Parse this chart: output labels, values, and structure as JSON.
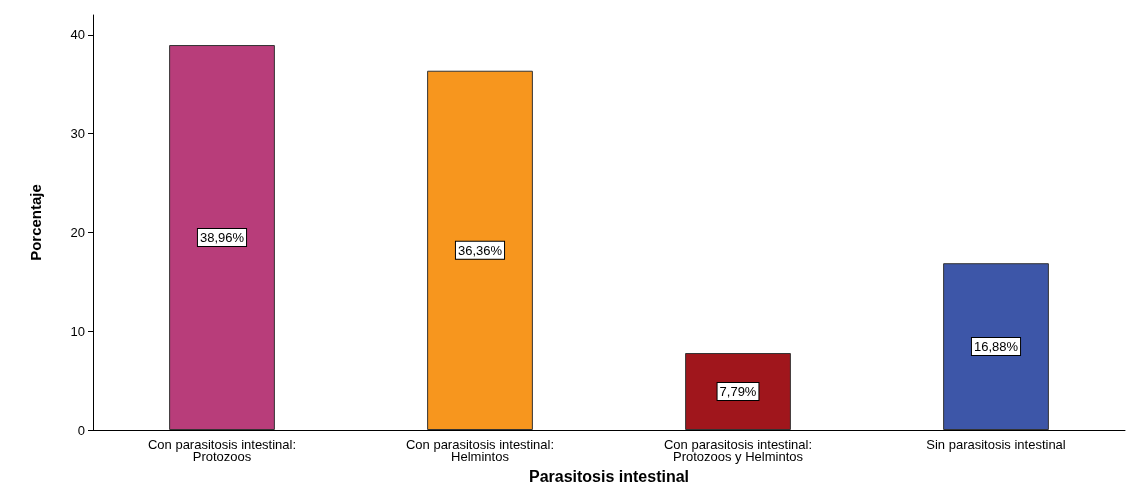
{
  "chart_data": {
    "type": "bar",
    "xlabel": "Parasitosis intestinal",
    "ylabel": "Porcentaje",
    "categories": [
      "Con parasitosis intestinal:\nProtozoos",
      "Con parasitosis intestinal:\nHelmintos",
      "Con parasitosis intestinal:\nProtozoos y Helmintos",
      "Sin parasitosis intestinal"
    ],
    "values": [
      38.96,
      36.36,
      7.79,
      16.88
    ],
    "value_labels": [
      "38,96%",
      "36,36%",
      "7,79%",
      "16,88%"
    ],
    "colors": [
      "#b83d7a",
      "#f7961e",
      "#a0161c",
      "#3d56a8"
    ],
    "ylim": [
      0,
      42
    ],
    "yticks": [
      0,
      10,
      20,
      30,
      40
    ],
    "grid": false
  }
}
